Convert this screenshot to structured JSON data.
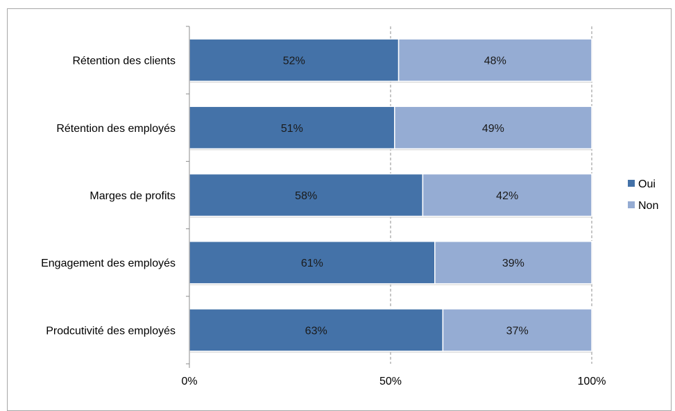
{
  "chart_data": {
    "type": "bar",
    "orientation": "horizontal",
    "stacked": "percent",
    "categories": [
      "Rétention des clients",
      "Rétention des employés",
      "Marges de profits",
      "Engagement des employés",
      "Prodcutivité des employés"
    ],
    "series": [
      {
        "name": "Oui",
        "values": [
          52,
          51,
          58,
          61,
          63
        ],
        "labels": [
          "52%",
          "51%",
          "58%",
          "61%",
          "63%"
        ],
        "color": "#4472a8"
      },
      {
        "name": "Non",
        "values": [
          48,
          49,
          42,
          39,
          37
        ],
        "labels": [
          "48%",
          "49%",
          "42%",
          "39%",
          "37%"
        ],
        "color": "#95acd3"
      }
    ],
    "xlim": [
      0,
      100
    ],
    "xticks": [
      "0%",
      "50%",
      "100%"
    ],
    "xtick_values": [
      0,
      50,
      100
    ],
    "grid": "vertical dashed",
    "legend_position": "right",
    "title": "",
    "xlabel": "",
    "ylabel": ""
  }
}
